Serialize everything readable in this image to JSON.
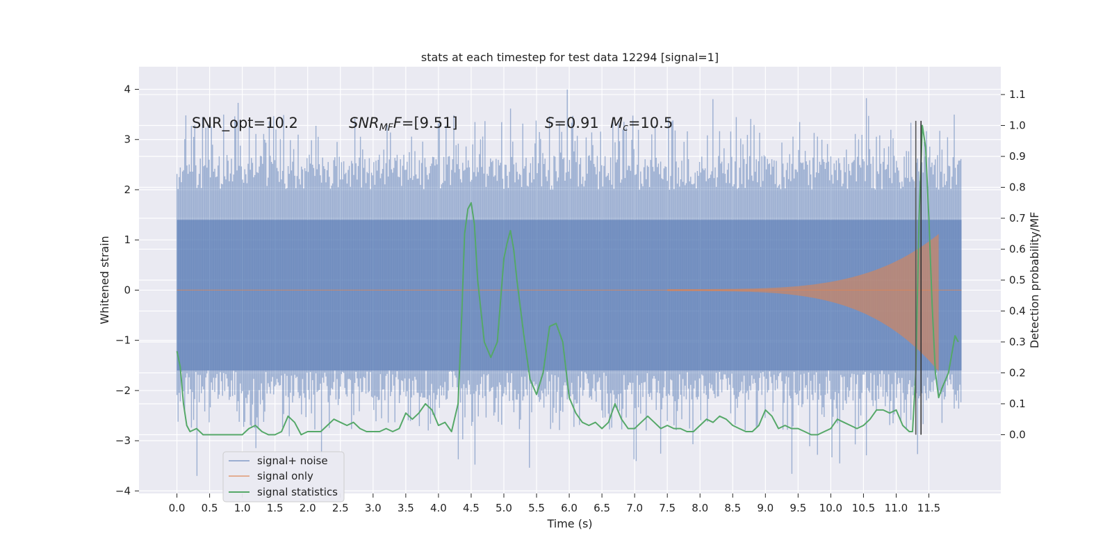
{
  "chart_data": {
    "type": "line",
    "title": "stats at each timestep for test data 12294 [signal=1]",
    "xlabel": "Time (s)",
    "ylabel_left": "Whitened strain",
    "ylabel_right": "Detection probability/MF",
    "xlim": [
      -0.58,
      12.6
    ],
    "ylim_left": [
      -4.05,
      4.45
    ],
    "ylim_right": [
      -0.19,
      1.19
    ],
    "x_ticks": [
      "0.0",
      "0.5",
      "1.0",
      "1.5",
      "2.0",
      "2.5",
      "3.0",
      "3.5",
      "4.0",
      "4.5",
      "5.0",
      "5.5",
      "6.0",
      "6.5",
      "7.0",
      "7.5",
      "8.0",
      "8.5",
      "9.0",
      "9.5",
      "10.0",
      "10.5",
      "11.0",
      "11.5"
    ],
    "y_ticks_left": [
      4,
      3,
      2,
      1,
      0,
      -1,
      -2,
      -3,
      -4
    ],
    "y_ticks_left_labels": [
      "4",
      "3",
      "2",
      "1",
      "0",
      "−1",
      "−2",
      "−3",
      "−4"
    ],
    "y_ticks_right": [
      1.1,
      1.0,
      0.9,
      0.8,
      0.7,
      0.6,
      0.5,
      0.4,
      0.3,
      0.2,
      0.1,
      0.0
    ],
    "y_ticks_right_labels": [
      "1.1",
      "1.0",
      "0.9",
      "0.8",
      "0.7",
      "0.6",
      "0.5",
      "0.4",
      "0.3",
      "0.2",
      "0.1",
      "0.0"
    ],
    "grid": true,
    "background": "#EAEAF2",
    "annotations": [
      {
        "id": "snr-opt",
        "text": "SNR_opt=10.2"
      },
      {
        "id": "snr-mf",
        "text_main": "SNR",
        "text_sub": "MF",
        "text_rest": "=[9.51]"
      },
      {
        "id": "s-stat",
        "text_main": "S",
        "text_rest": "=0.91"
      },
      {
        "id": "mc",
        "text_main": "M",
        "text_sub": "c",
        "text_rest": "=10.5"
      }
    ],
    "legend": {
      "placement": "lower-left",
      "entries": [
        "signal+ noise",
        "signal only",
        "signal statistics"
      ]
    },
    "series": [
      {
        "name": "signal+ noise",
        "color": "#4C72B0",
        "kind": "noise-band",
        "x_range": [
          0.0,
          12.0
        ],
        "core_band": [
          -1.6,
          1.4
        ],
        "max_peak": 4.1,
        "min_trough": -3.7
      },
      {
        "name": "signal only",
        "color": "#DD8452",
        "kind": "chirp",
        "x_start": 7.5,
        "x_end": 11.65,
        "max_amplitude_upper": 1.1,
        "max_amplitude_lower": -1.6
      },
      {
        "name": "signal statistics",
        "color": "#55A868",
        "axis": "right",
        "x": [
          0.0,
          0.05,
          0.1,
          0.15,
          0.2,
          0.3,
          0.4,
          0.5,
          0.6,
          0.8,
          1.0,
          1.1,
          1.2,
          1.3,
          1.4,
          1.5,
          1.6,
          1.7,
          1.8,
          1.9,
          2.0,
          2.2,
          2.3,
          2.4,
          2.5,
          2.6,
          2.7,
          2.8,
          2.9,
          3.0,
          3.1,
          3.2,
          3.3,
          3.4,
          3.5,
          3.6,
          3.7,
          3.8,
          3.9,
          4.0,
          4.1,
          4.2,
          4.3,
          4.35,
          4.4,
          4.45,
          4.5,
          4.55,
          4.6,
          4.7,
          4.8,
          4.9,
          5.0,
          5.05,
          5.1,
          5.15,
          5.2,
          5.3,
          5.4,
          5.5,
          5.6,
          5.7,
          5.8,
          5.9,
          6.0,
          6.1,
          6.2,
          6.3,
          6.4,
          6.5,
          6.6,
          6.7,
          6.8,
          6.9,
          7.0,
          7.1,
          7.2,
          7.3,
          7.4,
          7.5,
          7.6,
          7.7,
          7.8,
          7.9,
          8.0,
          8.1,
          8.2,
          8.3,
          8.4,
          8.5,
          8.6,
          8.7,
          8.8,
          8.9,
          9.0,
          9.1,
          9.2,
          9.3,
          9.4,
          9.5,
          9.6,
          9.7,
          9.8,
          9.9,
          10.0,
          10.1,
          10.2,
          10.3,
          10.4,
          10.5,
          10.6,
          10.7,
          10.8,
          10.9,
          11.0,
          11.1,
          11.2,
          11.25,
          11.3,
          11.35,
          11.4,
          11.45,
          11.5,
          11.55,
          11.6,
          11.65,
          11.7,
          11.8,
          11.9,
          11.95
        ],
        "y": [
          0.27,
          0.22,
          0.1,
          0.03,
          0.01,
          0.02,
          0.0,
          0.0,
          0.0,
          0.0,
          0.0,
          0.02,
          0.03,
          0.01,
          0.0,
          0.0,
          0.01,
          0.06,
          0.04,
          0.0,
          0.01,
          0.01,
          0.03,
          0.05,
          0.04,
          0.03,
          0.04,
          0.02,
          0.01,
          0.01,
          0.01,
          0.02,
          0.01,
          0.02,
          0.07,
          0.05,
          0.07,
          0.1,
          0.08,
          0.03,
          0.04,
          0.01,
          0.1,
          0.35,
          0.65,
          0.73,
          0.75,
          0.68,
          0.5,
          0.3,
          0.25,
          0.3,
          0.57,
          0.62,
          0.66,
          0.6,
          0.5,
          0.33,
          0.18,
          0.13,
          0.2,
          0.35,
          0.36,
          0.3,
          0.12,
          0.07,
          0.04,
          0.03,
          0.04,
          0.02,
          0.04,
          0.1,
          0.05,
          0.02,
          0.02,
          0.04,
          0.06,
          0.04,
          0.02,
          0.03,
          0.02,
          0.02,
          0.01,
          0.01,
          0.03,
          0.05,
          0.04,
          0.06,
          0.05,
          0.03,
          0.02,
          0.01,
          0.01,
          0.03,
          0.08,
          0.06,
          0.02,
          0.03,
          0.02,
          0.02,
          0.01,
          0.0,
          0.0,
          0.01,
          0.02,
          0.05,
          0.04,
          0.03,
          0.02,
          0.03,
          0.05,
          0.08,
          0.08,
          0.07,
          0.08,
          0.03,
          0.01,
          0.01,
          0.2,
          0.7,
          1.0,
          0.93,
          0.7,
          0.42,
          0.2,
          0.12,
          0.15,
          0.2,
          0.32,
          0.3
        ]
      }
    ],
    "vlines": [
      {
        "x": 11.3,
        "y_top": 1.0,
        "y_bottom": 0.0,
        "color": "#555555"
      },
      {
        "x": 11.38,
        "y_top": 1.0,
        "y_bottom": 0.0,
        "color": "#333333"
      }
    ]
  }
}
